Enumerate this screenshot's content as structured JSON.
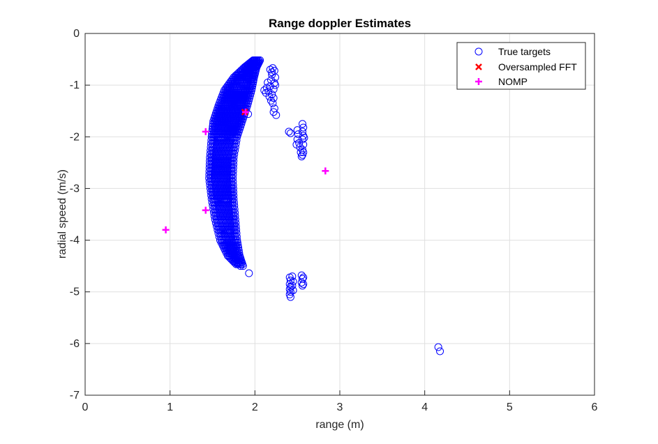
{
  "chart_data": {
    "type": "scatter",
    "title": "Range doppler Estimates",
    "xlabel": "range (m)",
    "ylabel": "radial speed (m/s)",
    "xlim": [
      0,
      6
    ],
    "ylim": [
      -7,
      0
    ],
    "xticks": [
      0,
      1,
      2,
      3,
      4,
      5,
      6
    ],
    "yticks": [
      0,
      -1,
      -2,
      -3,
      -4,
      -5,
      -6,
      -7
    ],
    "grid": true,
    "legend_position": "top-right",
    "series": [
      {
        "name": "True targets",
        "marker": "circle-open",
        "color": "#0000ff",
        "clusters": [
          {
            "shape": "crescent",
            "spine": [
              [
                2.02,
                -0.52
              ],
              [
                1.95,
                -0.65
              ],
              [
                1.87,
                -0.85
              ],
              [
                1.8,
                -1.1
              ],
              [
                1.74,
                -1.4
              ],
              [
                1.68,
                -1.7
              ],
              [
                1.64,
                -2.0
              ],
              [
                1.61,
                -2.4
              ],
              [
                1.6,
                -2.8
              ],
              [
                1.62,
                -3.2
              ],
              [
                1.65,
                -3.6
              ],
              [
                1.69,
                -4.0
              ],
              [
                1.75,
                -4.3
              ],
              [
                1.83,
                -4.5
              ]
            ],
            "half_width": [
              0.04,
              0.07,
              0.12,
              0.16,
              0.17,
              0.17,
              0.15,
              0.14,
              0.14,
              0.13,
              0.12,
              0.1,
              0.07,
              0.03
            ]
          },
          {
            "shape": "points",
            "points": [
              [
                1.93,
                -4.64
              ],
              [
                1.86,
                -4.5
              ],
              [
                1.8,
                -4.45
              ],
              [
                2.02,
                -0.52
              ],
              [
                1.98,
                -0.53
              ],
              [
                1.92,
                -1.56
              ]
            ]
          },
          {
            "shape": "points",
            "points": [
              [
                2.18,
                -0.7
              ],
              [
                2.21,
                -0.67
              ],
              [
                2.23,
                -0.72
              ],
              [
                2.2,
                -0.8
              ],
              [
                2.24,
                -0.85
              ],
              [
                2.19,
                -0.9
              ],
              [
                2.23,
                -0.96
              ],
              [
                2.18,
                -1.02
              ],
              [
                2.22,
                -1.08
              ],
              [
                2.16,
                -1.12
              ],
              [
                2.2,
                -1.18
              ],
              [
                2.14,
                -1.05
              ],
              [
                2.13,
                -1.15
              ],
              [
                2.17,
                -1.22
              ],
              [
                2.22,
                -1.25
              ],
              [
                2.21,
                -1.35
              ],
              [
                2.23,
                -1.45
              ],
              [
                2.22,
                -1.52
              ],
              [
                2.25,
                -1.58
              ],
              [
                2.2,
                -0.75
              ],
              [
                2.24,
                -1.0
              ],
              [
                2.15,
                -0.95
              ],
              [
                2.11,
                -1.1
              ],
              [
                2.19,
                -1.3
              ]
            ]
          },
          {
            "shape": "points",
            "points": [
              [
                2.4,
                -1.9
              ],
              [
                2.42,
                -1.93
              ],
              [
                2.5,
                -1.87
              ],
              [
                2.51,
                -1.95
              ],
              [
                2.5,
                -2.05
              ],
              [
                2.52,
                -2.12
              ],
              [
                2.49,
                -2.15
              ],
              [
                2.53,
                -2.2
              ],
              [
                2.56,
                -1.75
              ],
              [
                2.57,
                -1.82
              ],
              [
                2.56,
                -1.9
              ],
              [
                2.57,
                -1.98
              ],
              [
                2.56,
                -2.05
              ],
              [
                2.57,
                -2.15
              ],
              [
                2.56,
                -2.25
              ],
              [
                2.57,
                -2.3
              ],
              [
                2.56,
                -2.35
              ],
              [
                2.55,
                -2.38
              ],
              [
                2.54,
                -2.3
              ],
              [
                2.58,
                -2.02
              ]
            ]
          },
          {
            "shape": "points",
            "points": [
              [
                2.41,
                -4.72
              ],
              [
                2.42,
                -4.78
              ],
              [
                2.41,
                -4.85
              ],
              [
                2.42,
                -4.9
              ],
              [
                2.41,
                -4.95
              ],
              [
                2.42,
                -5.0
              ],
              [
                2.41,
                -5.05
              ],
              [
                2.42,
                -5.1
              ],
              [
                2.44,
                -4.7
              ],
              [
                2.45,
                -4.8
              ],
              [
                2.44,
                -4.88
              ],
              [
                2.45,
                -4.97
              ],
              [
                2.55,
                -4.68
              ],
              [
                2.56,
                -4.75
              ],
              [
                2.55,
                -4.82
              ],
              [
                2.56,
                -4.88
              ],
              [
                2.57,
                -4.72
              ],
              [
                2.57,
                -4.85
              ]
            ]
          },
          {
            "shape": "points",
            "points": [
              [
                4.16,
                -6.07
              ],
              [
                4.18,
                -6.15
              ]
            ]
          }
        ]
      },
      {
        "name": "Oversampled FFT",
        "marker": "x",
        "color": "#ff0000",
        "points": [
          [
            1.88,
            -1.52
          ]
        ]
      },
      {
        "name": "NOMP",
        "marker": "plus",
        "color": "#ff00ff",
        "points": [
          [
            0.95,
            -3.8
          ],
          [
            1.42,
            -1.9
          ],
          [
            1.42,
            -3.42
          ],
          [
            1.89,
            -1.52
          ],
          [
            2.83,
            -2.66
          ]
        ]
      }
    ]
  }
}
